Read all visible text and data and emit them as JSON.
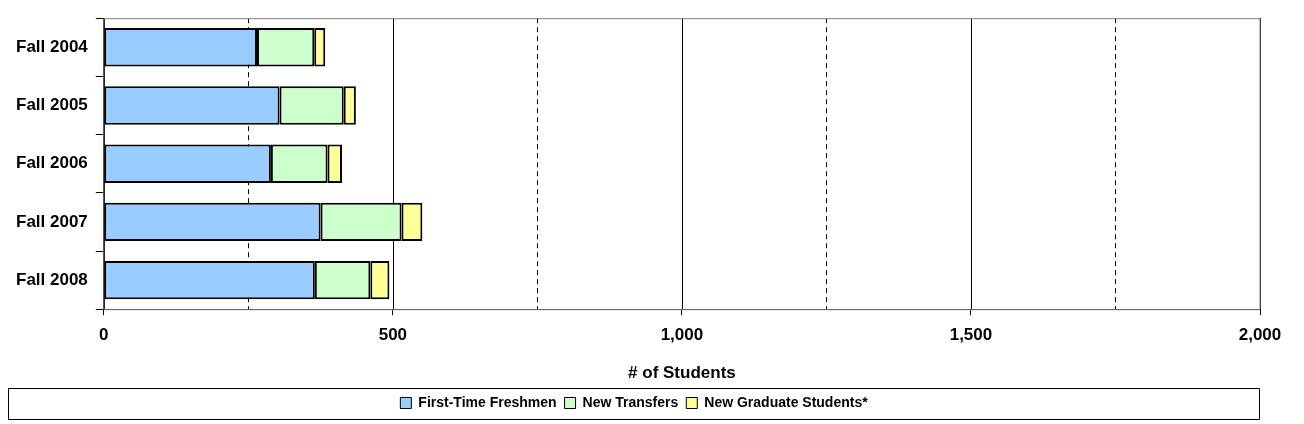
{
  "chart_data": {
    "type": "bar",
    "orientation": "horizontal",
    "stacked": true,
    "categories": [
      "Fall 2004",
      "Fall 2005",
      "Fall 2006",
      "Fall 2007",
      "Fall 2008"
    ],
    "series": [
      {
        "name": "First-Time Freshmen",
        "color": "#99ccff",
        "values": [
          265,
          304,
          289,
          375,
          365
        ]
      },
      {
        "name": "New Transfers",
        "color": "#ccffcc",
        "values": [
          99,
          111,
          98,
          140,
          96
        ]
      },
      {
        "name": "New Graduate Students*",
        "color": "#ffff99",
        "values": [
          19,
          21,
          25,
          36,
          33
        ]
      }
    ],
    "xlabel": "# of Students",
    "xlim": [
      0,
      2000
    ],
    "xticks": [
      0,
      {
        "value": 250,
        "label": null
      },
      500,
      {
        "value": 750,
        "label": null
      },
      {
        "value": 1000,
        "label": "1,000"
      },
      {
        "value": 1250,
        "label": null
      },
      {
        "value": 1500,
        "label": "1,500"
      },
      {
        "value": 1750,
        "label": null
      },
      {
        "value": 2000,
        "label": "2,000"
      }
    ],
    "grid": "x",
    "legend": "bottom"
  }
}
